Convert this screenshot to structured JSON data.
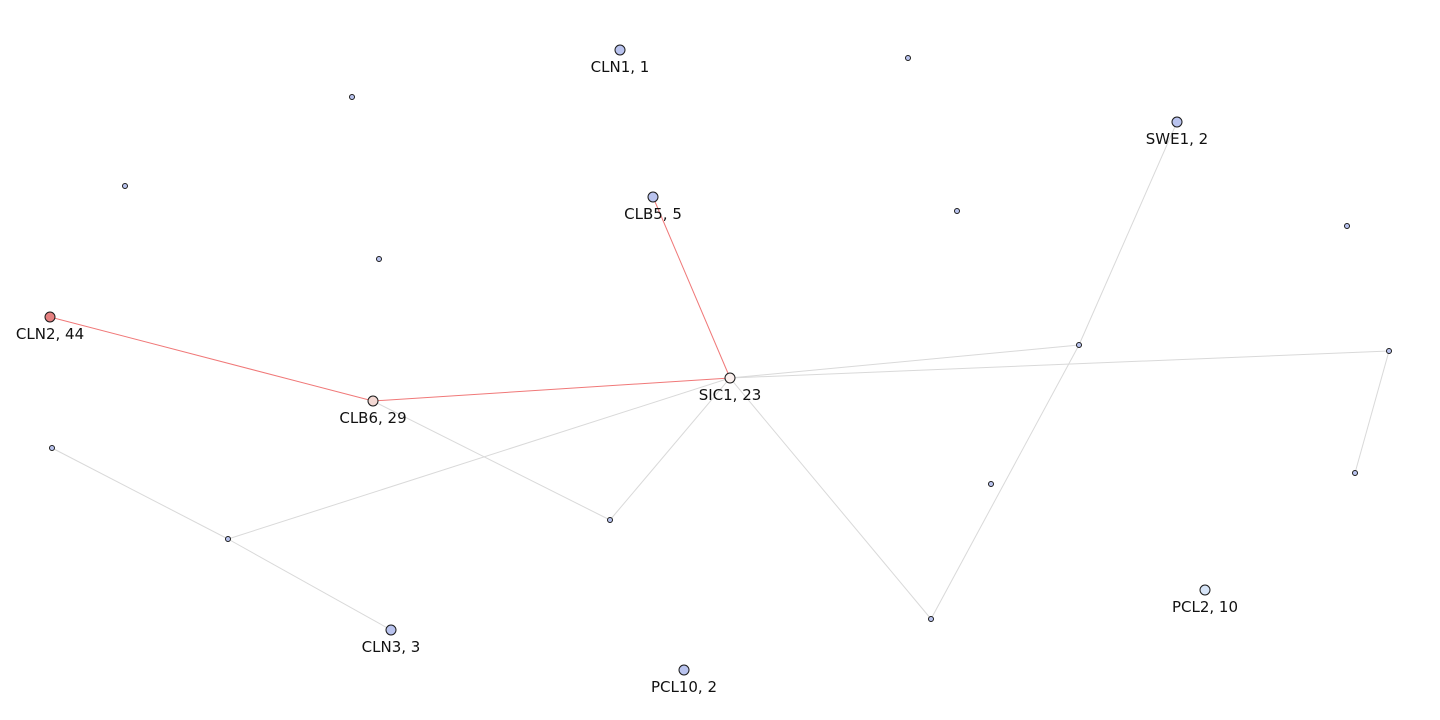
{
  "graph": {
    "colors": {
      "background": "#ffffff",
      "default_node": "#b9c3ee",
      "highlight_edge": "#f07878",
      "default_edge": "#d9d9d9"
    },
    "nodes": [
      {
        "id": "CLN1",
        "label": "CLN1, 1",
        "color": "#b9c3ee"
      },
      {
        "id": "SWE1",
        "label": "SWE1, 2",
        "color": "#b9c3ee"
      },
      {
        "id": "CLB5",
        "label": "CLB5, 5",
        "color": "#b9c3ee"
      },
      {
        "id": "CLN2",
        "label": "CLN2, 44",
        "color": "#e58080"
      },
      {
        "id": "CLB6",
        "label": "CLB6, 29",
        "color": "#f3d8d3"
      },
      {
        "id": "SIC1",
        "label": "SIC1, 23",
        "color": "#fbf0ee"
      },
      {
        "id": "CLN3",
        "label": "CLN3, 3",
        "color": "#b9c3ee"
      },
      {
        "id": "PCL10",
        "label": "PCL10, 2",
        "color": "#b9c3ee"
      },
      {
        "id": "PCL2",
        "label": "PCL2, 10",
        "color": "#d6e4f7"
      },
      {
        "id": "u1",
        "label": "",
        "color": "#b9c3ee"
      },
      {
        "id": "u2",
        "label": "",
        "color": "#b9c3ee"
      },
      {
        "id": "u3",
        "label": "",
        "color": "#b9c3ee"
      },
      {
        "id": "u4",
        "label": "",
        "color": "#b9c3ee"
      },
      {
        "id": "u5",
        "label": "",
        "color": "#b9c3ee"
      },
      {
        "id": "u6",
        "label": "",
        "color": "#b9c3ee"
      },
      {
        "id": "u7",
        "label": "",
        "color": "#b9c3ee"
      },
      {
        "id": "u8",
        "label": "",
        "color": "#b9c3ee"
      },
      {
        "id": "u9",
        "label": "",
        "color": "#b9c3ee"
      },
      {
        "id": "u10",
        "label": "",
        "color": "#b9c3ee"
      },
      {
        "id": "u11",
        "label": "",
        "color": "#b9c3ee"
      },
      {
        "id": "u12",
        "label": "",
        "color": "#b9c3ee"
      },
      {
        "id": "u13",
        "label": "",
        "color": "#b9c3ee"
      },
      {
        "id": "u14",
        "label": "",
        "color": "#b9c3ee"
      },
      {
        "id": "u15",
        "label": "",
        "color": "#b9c3ee"
      }
    ],
    "edges": [
      {
        "source": "CLN2",
        "target": "CLB6",
        "highlight": true
      },
      {
        "source": "CLB6",
        "target": "SIC1",
        "highlight": true
      },
      {
        "source": "CLB5",
        "target": "SIC1",
        "highlight": true
      },
      {
        "source": "SIC1",
        "target": "u8",
        "highlight": false
      },
      {
        "source": "SIC1",
        "target": "u9",
        "highlight": false
      },
      {
        "source": "SIC1",
        "target": "u10",
        "highlight": false
      },
      {
        "source": "SIC1",
        "target": "u11",
        "highlight": false
      },
      {
        "source": "SIC1",
        "target": "u12",
        "highlight": false
      },
      {
        "source": "CLB6",
        "target": "u10",
        "highlight": false
      },
      {
        "source": "u7",
        "target": "u11",
        "highlight": false
      },
      {
        "source": "u11",
        "target": "CLN3",
        "highlight": false
      },
      {
        "source": "SWE1",
        "target": "u8",
        "highlight": false
      },
      {
        "source": "u8",
        "target": "u12",
        "highlight": false
      },
      {
        "source": "u9",
        "target": "u14",
        "highlight": false
      }
    ]
  }
}
